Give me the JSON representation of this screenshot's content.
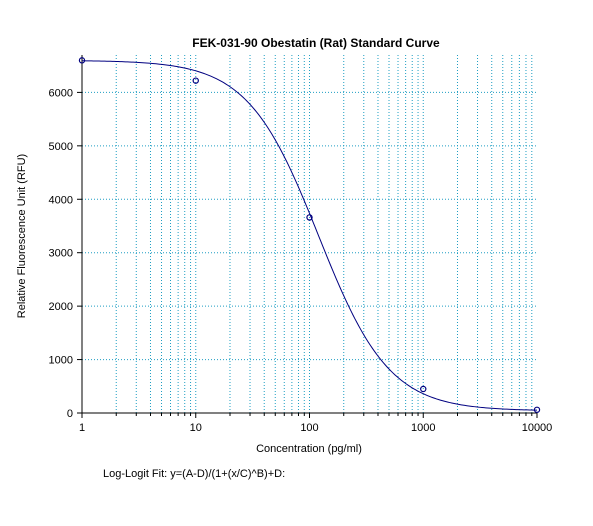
{
  "chart_data": {
    "type": "scatter",
    "title": "FEK-031-90 Obestatin (Rat) Standard Curve",
    "xlabel": "Concentration (pg/ml)",
    "ylabel": "Relative Fluorescence Unit (RFU)",
    "x_scale": "log",
    "xlim": [
      1,
      10000
    ],
    "ylim": [
      0,
      6700
    ],
    "x_ticks": [
      1,
      10,
      100,
      1000,
      10000
    ],
    "x_tick_labels": [
      "1",
      "10",
      "100",
      "1000",
      "10000"
    ],
    "y_ticks": [
      0,
      1000,
      2000,
      3000,
      4000,
      5000,
      6000
    ],
    "y_tick_labels": [
      "0",
      "1000",
      "2000",
      "3000",
      "4000",
      "5000",
      "6000"
    ],
    "grid": true,
    "series": [
      {
        "type": "scatter",
        "x": [
          1,
          10,
          100,
          1000,
          10000
        ],
        "y": [
          6600,
          6220,
          3660,
          450,
          60
        ]
      },
      {
        "type": "line",
        "fit": "log-logit",
        "params": {
          "A": 6600,
          "B": 1.4,
          "C": 120,
          "D": 40
        }
      }
    ],
    "footnote": "Log-Logit Fit: y=(A-D)/(1+(x/C)^B)+D:",
    "colors": {
      "grid": "#1e9ec3",
      "series": "#000080",
      "axis": "#000000"
    }
  }
}
